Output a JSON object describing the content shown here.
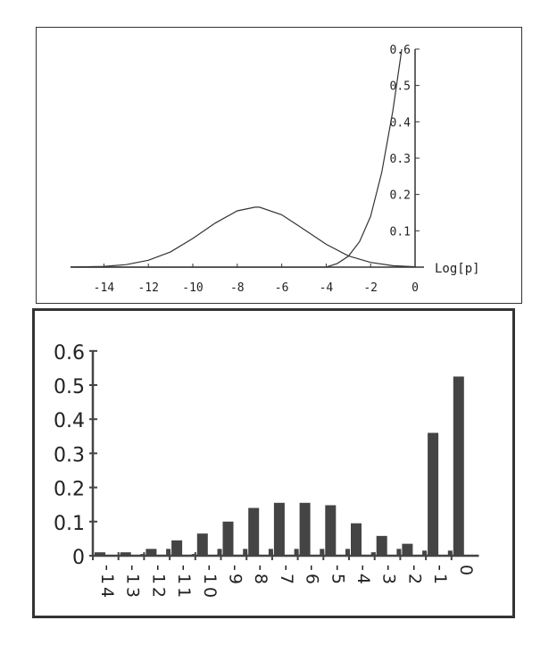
{
  "chart_data": [
    {
      "type": "line",
      "xlabel": "Log[p]",
      "xlim": [
        -15.5,
        0
      ],
      "ylim": [
        0,
        0.6
      ],
      "xticks": [
        -14,
        -12,
        -10,
        -8,
        -6,
        -4,
        -2,
        0
      ],
      "xtick_labels": [
        "-14",
        "-12",
        "-10",
        "-8",
        "-6",
        "-4",
        "-2",
        "0"
      ],
      "yticks": [
        0.1,
        0.2,
        0.3,
        0.4,
        0.5,
        0.6
      ],
      "ytick_labels": [
        "0.1",
        "0.2",
        "0.3",
        "0.4",
        "0.5",
        "0.6"
      ],
      "grid": false,
      "series": [
        {
          "x": [
            -15.5,
            -14,
            -13,
            -12,
            -11,
            -10,
            -9,
            -8,
            -7.2,
            -7,
            -6,
            -5,
            -4,
            -3,
            -2,
            -1,
            0
          ],
          "y": [
            0.0002,
            0.002,
            0.007,
            0.019,
            0.042,
            0.079,
            0.121,
            0.155,
            0.165,
            0.165,
            0.144,
            0.104,
            0.063,
            0.031,
            0.013,
            0.004,
            0.001
          ]
        },
        {
          "x": [
            -15.5,
            -4,
            -3.5,
            -3,
            -2.5,
            -2,
            -1.5,
            -1,
            -0.6
          ],
          "y": [
            0,
            0,
            0.01,
            0.03,
            0.07,
            0.14,
            0.26,
            0.43,
            0.6
          ]
        }
      ],
      "color": "#333333"
    },
    {
      "type": "bar",
      "categories": [
        "-14",
        "-13",
        "-12",
        "-11",
        "-10",
        "-9",
        "-8",
        "-7",
        "-6",
        "-5",
        "-4",
        "-3",
        "-2",
        "-1",
        "0"
      ],
      "ylim": [
        0,
        0.6
      ],
      "yticks": [
        0,
        0.1,
        0.2,
        0.3,
        0.4,
        0.5,
        0.6
      ],
      "ytick_labels": [
        "0",
        "0.1",
        "0.2",
        "0.3",
        "0.4",
        "0.5",
        "0.6"
      ],
      "grid": false,
      "series": [
        {
          "values": [
            0.01,
            0.01,
            0.02,
            0.045,
            0.065,
            0.1,
            0.14,
            0.155,
            0.155,
            0.148,
            0.095,
            0.058,
            0.035,
            0.36,
            0.525
          ]
        },
        {
          "values": [
            0,
            0,
            0.005,
            0.02,
            0.005,
            0.02,
            0.02,
            0.02,
            0.02,
            0.02,
            0.02,
            0.01,
            0.02,
            0.015,
            0.015
          ]
        }
      ],
      "color": "#444444"
    }
  ]
}
